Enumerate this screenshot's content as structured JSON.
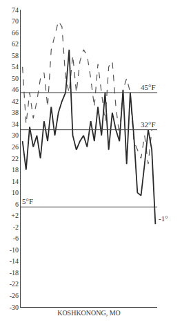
{
  "chart_data": {
    "type": "line",
    "title": "KOSHKONONG, MO",
    "categories": [
      null,
      null,
      null,
      null,
      null,
      null,
      null,
      null,
      null,
      null,
      null,
      null,
      null,
      null,
      null,
      null,
      null,
      null,
      null,
      null,
      null,
      null,
      null,
      null,
      null,
      null,
      null,
      null,
      null,
      null,
      null,
      null,
      null,
      null,
      null,
      null,
      null,
      null
    ],
    "series": [
      {
        "color": "#555555",
        "line_style": "dashed",
        "values": [
          54,
          34,
          45,
          36,
          42,
          50,
          52,
          40,
          60,
          65,
          70,
          68,
          50,
          45,
          58,
          45,
          56,
          60,
          58,
          50,
          40,
          55,
          45,
          35,
          54,
          56,
          40,
          30,
          46,
          50,
          45,
          28,
          25,
          22,
          30,
          20,
          32,
          null
        ]
      },
      {
        "color": "#2a2a2a",
        "line_style": "solid",
        "values": [
          28,
          18,
          33,
          26,
          30,
          22,
          35,
          28,
          40,
          30,
          38,
          42,
          45,
          60,
          30,
          25,
          28,
          30,
          26,
          35,
          28,
          40,
          30,
          45,
          25,
          38,
          32,
          28,
          46,
          20,
          45,
          30,
          10,
          9,
          20,
          32,
          25,
          -1
        ]
      }
    ],
    "ylim": [
      -30,
      74
    ],
    "yticks": [
      -30,
      -26,
      -22,
      -18,
      -14,
      -10,
      -6,
      -2,
      {
        "value": 2,
        "label": "+2"
      },
      6,
      10,
      14,
      18,
      22,
      26,
      30,
      34,
      38,
      42,
      46,
      50,
      54,
      58,
      62,
      66,
      70,
      74
    ],
    "reference_lines": [
      {
        "value": 45,
        "label": "45°F"
      },
      {
        "value": 32,
        "label": "32°F"
      },
      {
        "value": 5,
        "label": "5°F"
      }
    ],
    "annotations": [
      {
        "text": "-1°",
        "y": -1
      }
    ],
    "grid": false,
    "tick_labels": "y"
  }
}
